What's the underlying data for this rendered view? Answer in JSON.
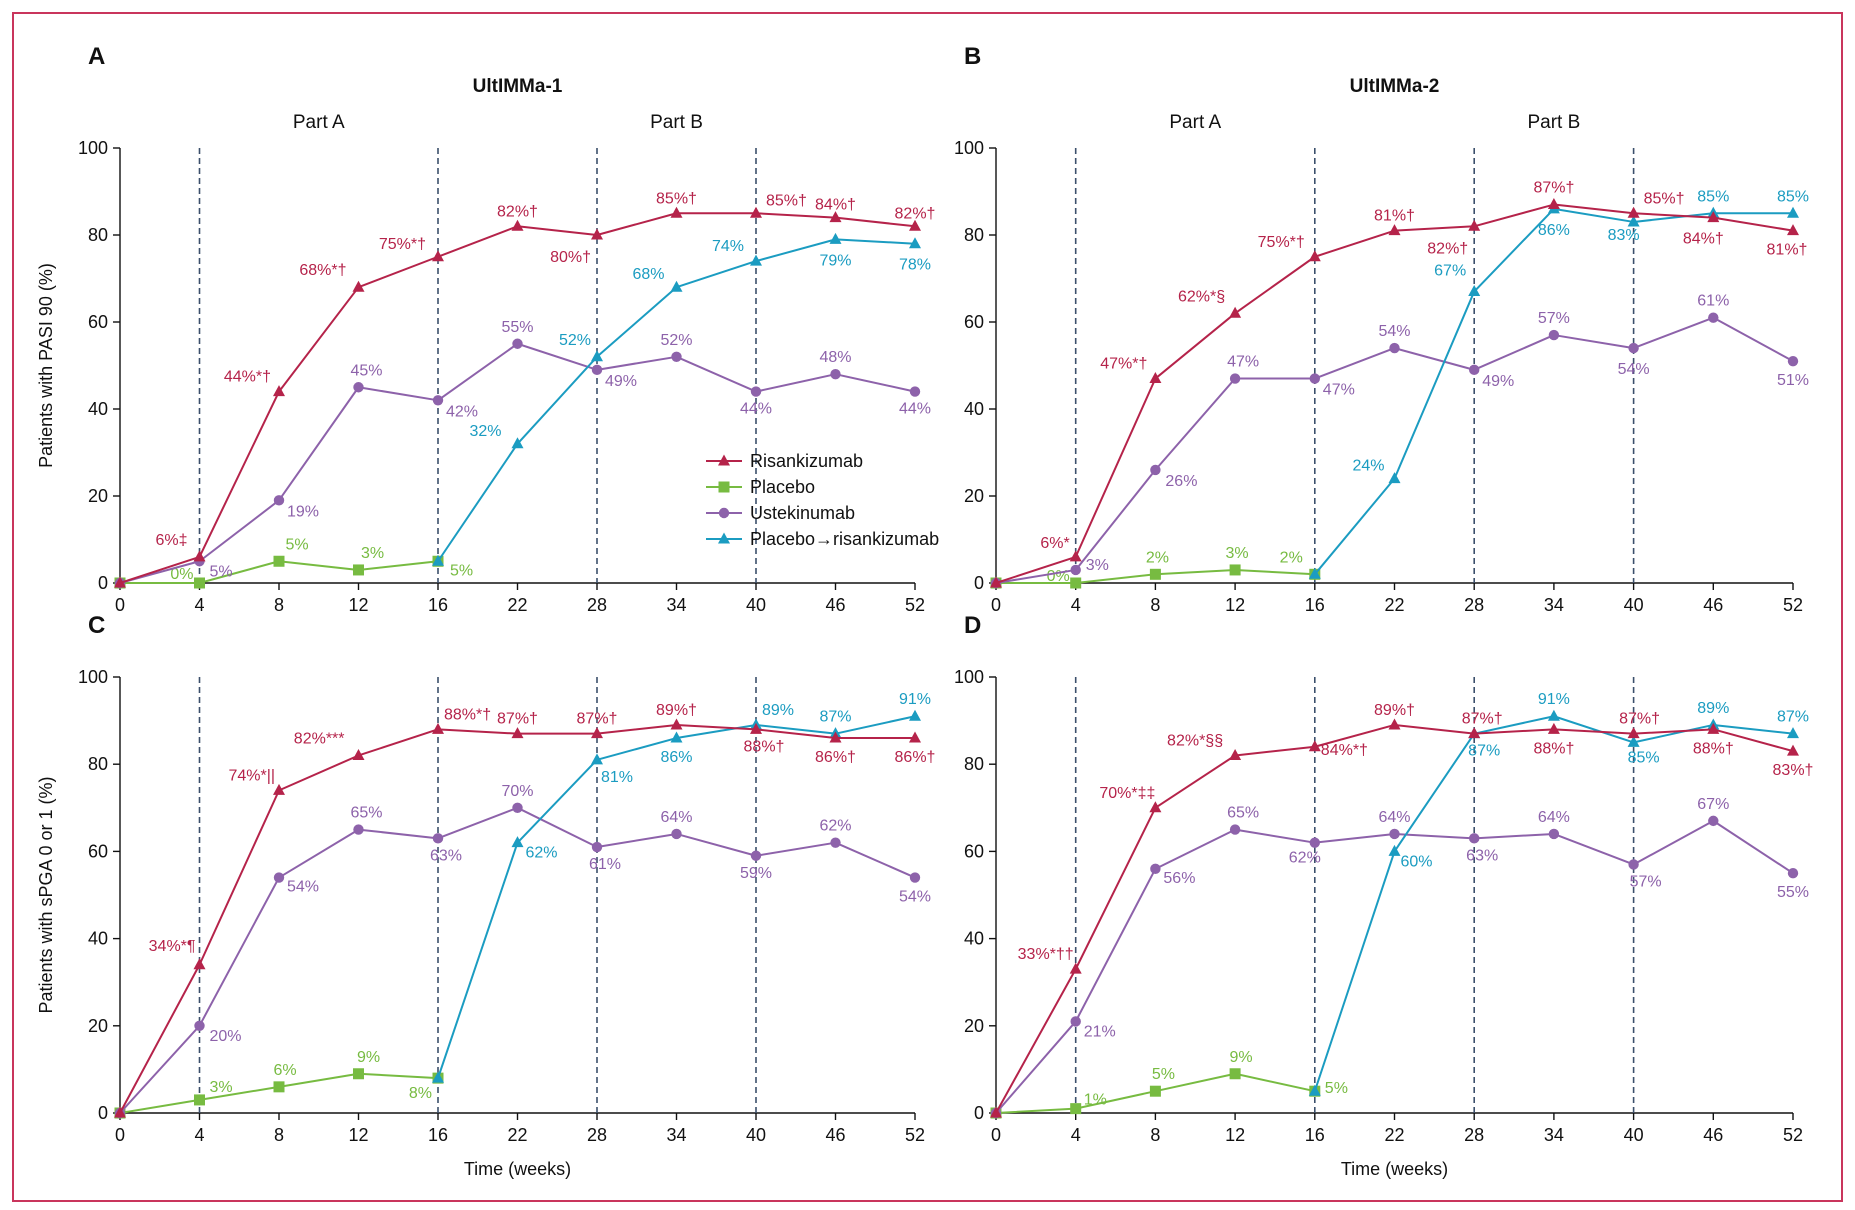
{
  "colors": {
    "risankizumab": "#b5234a",
    "placebo": "#77bb41",
    "ustekinumab": "#8d62aa",
    "placebo_risankizumab": "#1b9cc1",
    "frame": "#c9355c",
    "dashed": "#3b4f6b"
  },
  "legend": {
    "items": [
      {
        "series": "risankizumab",
        "label": "Risankizumab",
        "marker": "triangle"
      },
      {
        "series": "placebo",
        "label": "Placebo",
        "marker": "square"
      },
      {
        "series": "ustekinumab",
        "label": "Ustekinumab",
        "marker": "circle"
      },
      {
        "series": "placebo_risankizumab",
        "label": "Placebo→risankizumab",
        "marker": "triangle"
      }
    ]
  },
  "chart_data": [
    {
      "type": "line",
      "panel_label": "A",
      "title": "UltIMMa-1",
      "part_labels": [
        "Part A",
        "Part B"
      ],
      "xlabel": "",
      "ylabel": "Patients with PASI 90 (%)",
      "x": [
        0,
        4,
        8,
        12,
        16,
        22,
        28,
        34,
        40,
        46,
        52
      ],
      "x_ticks": [
        "0",
        "4",
        "8",
        "12",
        "16",
        "22",
        "28",
        "34",
        "40",
        "46",
        "52"
      ],
      "ylim": [
        0,
        100
      ],
      "y_ticks": [
        "0",
        "20",
        "40",
        "60",
        "80",
        "100"
      ],
      "dashed_at": [
        4,
        16,
        28,
        40
      ],
      "show_legend": true,
      "series": [
        {
          "key": "risankizumab",
          "x": [
            0,
            4,
            8,
            12,
            16,
            22,
            28,
            34,
            40,
            46,
            52
          ],
          "values": [
            0,
            6,
            44,
            68,
            75,
            82,
            80,
            85,
            85,
            84,
            82
          ],
          "labels": [
            "",
            "6%‡",
            "44%*†",
            "68%*†",
            "75%*†",
            "82%†",
            "80%†",
            "85%†",
            "85%†",
            "84%†",
            "82%†"
          ]
        },
        {
          "key": "placebo",
          "x": [
            0,
            4,
            8,
            12,
            16
          ],
          "values": [
            0,
            0,
            5,
            3,
            5
          ],
          "labels": [
            "",
            "0%",
            "5%",
            "3%",
            "5%"
          ]
        },
        {
          "key": "ustekinumab",
          "x": [
            0,
            4,
            8,
            12,
            16,
            22,
            28,
            34,
            40,
            46,
            52
          ],
          "values": [
            0,
            5,
            19,
            45,
            42,
            55,
            49,
            52,
            44,
            48,
            44
          ],
          "labels": [
            "",
            "5%",
            "19%",
            "45%",
            "42%",
            "55%",
            "49%",
            "52%",
            "44%",
            "48%",
            "44%"
          ]
        },
        {
          "key": "placebo_risankizumab",
          "x": [
            16,
            22,
            28,
            34,
            40,
            46,
            52
          ],
          "values": [
            5,
            32,
            52,
            68,
            74,
            79,
            78
          ],
          "labels": [
            "",
            "32%",
            "52%",
            "68%",
            "74%",
            "79%",
            "78%"
          ]
        }
      ]
    },
    {
      "type": "line",
      "panel_label": "B",
      "title": "UltIMMa-2",
      "part_labels": [
        "Part A",
        "Part B"
      ],
      "xlabel": "",
      "ylabel": "",
      "x": [
        0,
        4,
        8,
        12,
        16,
        22,
        28,
        34,
        40,
        46,
        52
      ],
      "x_ticks": [
        "0",
        "4",
        "8",
        "12",
        "16",
        "22",
        "28",
        "34",
        "40",
        "46",
        "52"
      ],
      "ylim": [
        0,
        100
      ],
      "y_ticks": [
        "0",
        "20",
        "40",
        "60",
        "80",
        "100"
      ],
      "dashed_at": [
        4,
        16,
        28,
        40
      ],
      "show_legend": false,
      "series": [
        {
          "key": "risankizumab",
          "x": [
            0,
            4,
            8,
            12,
            16,
            22,
            28,
            34,
            40,
            46,
            52
          ],
          "values": [
            0,
            6,
            47,
            62,
            75,
            81,
            82,
            87,
            85,
            84,
            81
          ],
          "labels": [
            "",
            "6%*",
            "47%*†",
            "62%*§",
            "75%*†",
            "81%†",
            "82%†",
            "87%†",
            "85%†",
            "84%†",
            "81%†"
          ]
        },
        {
          "key": "placebo",
          "x": [
            0,
            4,
            8,
            12,
            16
          ],
          "values": [
            0,
            0,
            2,
            3,
            2
          ],
          "labels": [
            "",
            "0%",
            "2%",
            "3%",
            "2%"
          ]
        },
        {
          "key": "ustekinumab",
          "x": [
            0,
            4,
            8,
            12,
            16,
            22,
            28,
            34,
            40,
            46,
            52
          ],
          "values": [
            0,
            3,
            26,
            47,
            47,
            54,
            49,
            57,
            54,
            61,
            51
          ],
          "labels": [
            "",
            "3%",
            "26%",
            "47%",
            "47%",
            "54%",
            "49%",
            "57%",
            "54%",
            "61%",
            "51%"
          ]
        },
        {
          "key": "placebo_risankizumab",
          "x": [
            16,
            22,
            28,
            34,
            40,
            46,
            52
          ],
          "values": [
            2,
            24,
            67,
            86,
            83,
            85,
            85
          ],
          "labels": [
            "",
            "24%",
            "67%",
            "86%",
            "83%",
            "85%",
            "85%"
          ]
        }
      ]
    },
    {
      "type": "line",
      "panel_label": "C",
      "title": "",
      "part_labels": [],
      "xlabel": "Time (weeks)",
      "ylabel": "Patients with sPGA 0 or 1 (%)",
      "x": [
        0,
        4,
        8,
        12,
        16,
        22,
        28,
        34,
        40,
        46,
        52
      ],
      "x_ticks": [
        "0",
        "4",
        "8",
        "12",
        "16",
        "22",
        "28",
        "34",
        "40",
        "46",
        "52"
      ],
      "ylim": [
        0,
        100
      ],
      "y_ticks": [
        "0",
        "20",
        "40",
        "60",
        "80",
        "100"
      ],
      "dashed_at": [
        4,
        16,
        28,
        40
      ],
      "show_legend": false,
      "series": [
        {
          "key": "risankizumab",
          "x": [
            0,
            4,
            8,
            12,
            16,
            22,
            28,
            34,
            40,
            46,
            52
          ],
          "values": [
            0,
            34,
            74,
            82,
            88,
            87,
            87,
            89,
            88,
            86,
            86
          ],
          "labels": [
            "",
            "34%*¶",
            "74%*||",
            "82%***",
            "88%*†",
            "87%†",
            "87%†",
            "89%†",
            "88%†",
            "86%†",
            "86%†"
          ]
        },
        {
          "key": "placebo",
          "x": [
            0,
            4,
            8,
            12,
            16
          ],
          "values": [
            0,
            3,
            6,
            9,
            8
          ],
          "labels": [
            "",
            "3%",
            "6%",
            "9%",
            "8%"
          ]
        },
        {
          "key": "ustekinumab",
          "x": [
            0,
            4,
            8,
            12,
            16,
            22,
            28,
            34,
            40,
            46,
            52
          ],
          "values": [
            0,
            20,
            54,
            65,
            63,
            70,
            61,
            64,
            59,
            62,
            54
          ],
          "labels": [
            "",
            "20%",
            "54%",
            "65%",
            "63%",
            "70%",
            "61%",
            "64%",
            "59%",
            "62%",
            "54%"
          ]
        },
        {
          "key": "placebo_risankizumab",
          "x": [
            16,
            22,
            28,
            34,
            40,
            46,
            52
          ],
          "values": [
            8,
            62,
            81,
            86,
            89,
            87,
            91
          ],
          "labels": [
            "",
            "62%",
            "81%",
            "86%",
            "89%",
            "87%",
            "91%"
          ]
        }
      ]
    },
    {
      "type": "line",
      "panel_label": "D",
      "title": "",
      "part_labels": [],
      "xlabel": "Time (weeks)",
      "ylabel": "",
      "x": [
        0,
        4,
        8,
        12,
        16,
        22,
        28,
        34,
        40,
        46,
        52
      ],
      "x_ticks": [
        "0",
        "4",
        "8",
        "12",
        "16",
        "22",
        "28",
        "34",
        "40",
        "46",
        "52"
      ],
      "ylim": [
        0,
        100
      ],
      "y_ticks": [
        "0",
        "20",
        "40",
        "60",
        "80",
        "100"
      ],
      "dashed_at": [
        4,
        16,
        28,
        40
      ],
      "show_legend": false,
      "series": [
        {
          "key": "risankizumab",
          "x": [
            0,
            4,
            8,
            12,
            16,
            22,
            28,
            34,
            40,
            46,
            52
          ],
          "values": [
            0,
            33,
            70,
            82,
            84,
            89,
            87,
            88,
            87,
            88,
            83
          ],
          "labels": [
            "",
            "33%*††",
            "70%*‡‡",
            "82%*§§",
            "84%*†",
            "89%†",
            "87%†",
            "88%†",
            "87%†",
            "88%†",
            "83%†"
          ]
        },
        {
          "key": "placebo",
          "x": [
            0,
            4,
            8,
            12,
            16
          ],
          "values": [
            0,
            1,
            5,
            9,
            5
          ],
          "labels": [
            "",
            "1%",
            "5%",
            "9%",
            "5%"
          ]
        },
        {
          "key": "ustekinumab",
          "x": [
            0,
            4,
            8,
            12,
            16,
            22,
            28,
            34,
            40,
            46,
            52
          ],
          "values": [
            0,
            21,
            56,
            65,
            62,
            64,
            63,
            64,
            57,
            67,
            55
          ],
          "labels": [
            "",
            "21%",
            "56%",
            "65%",
            "62%",
            "64%",
            "63%",
            "64%",
            "57%",
            "67%",
            "55%"
          ]
        },
        {
          "key": "placebo_risankizumab",
          "x": [
            16,
            22,
            28,
            34,
            40,
            46,
            52
          ],
          "values": [
            5,
            60,
            87,
            91,
            85,
            89,
            87
          ],
          "labels": [
            "",
            "60%",
            "87%",
            "91%",
            "85%",
            "89%",
            "87%"
          ]
        }
      ]
    }
  ]
}
